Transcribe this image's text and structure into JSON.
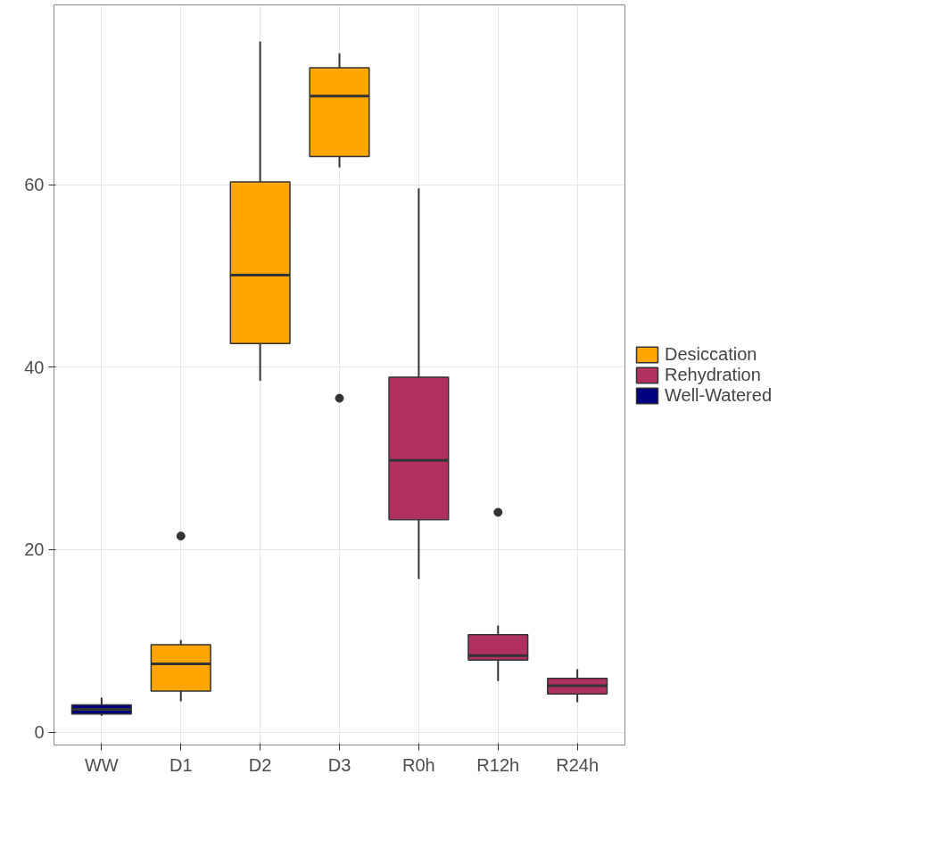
{
  "chart_data": {
    "type": "box",
    "categories": [
      "WW",
      "D1",
      "D2",
      "D3",
      "R0h",
      "R12h",
      "R24h"
    ],
    "series": [
      {
        "name": "Desiccation",
        "color": "#ffa500",
        "boxes": [
          null,
          {
            "low": 3.4,
            "q1": 4.5,
            "median": 7.5,
            "q3": 9.6,
            "high": 10.1,
            "outliers": [
              21.5
            ]
          },
          {
            "low": 38.5,
            "q1": 42.6,
            "median": 50.1,
            "q3": 60.3,
            "high": 75.7
          },
          {
            "low": 61.9,
            "q1": 63.1,
            "median": 69.7,
            "q3": 72.8,
            "high": 74.4,
            "outliers": [
              36.6
            ]
          },
          null,
          null,
          null
        ]
      },
      {
        "name": "Rehydration",
        "color": "#b03060",
        "boxes": [
          null,
          null,
          null,
          null,
          {
            "low": 16.8,
            "q1": 23.3,
            "median": 29.8,
            "q3": 38.9,
            "high": 59.6
          },
          {
            "low": 5.6,
            "q1": 7.9,
            "median": 8.4,
            "q3": 10.7,
            "high": 11.7,
            "outliers": [
              24.1
            ]
          },
          {
            "low": 3.3,
            "q1": 4.2,
            "median": 5.1,
            "q3": 5.9,
            "high": 6.9
          }
        ]
      },
      {
        "name": "Well-Watered",
        "color": "#000080",
        "boxes": [
          {
            "low": 1.8,
            "q1": 2.0,
            "median": 2.5,
            "q3": 3.0,
            "high": 3.8
          },
          null,
          null,
          null,
          null,
          null,
          null
        ]
      }
    ],
    "ylim": [
      -1.4,
      79.7
    ],
    "yticks": [
      0,
      20,
      40,
      60
    ],
    "grid": true,
    "legend": "right"
  }
}
